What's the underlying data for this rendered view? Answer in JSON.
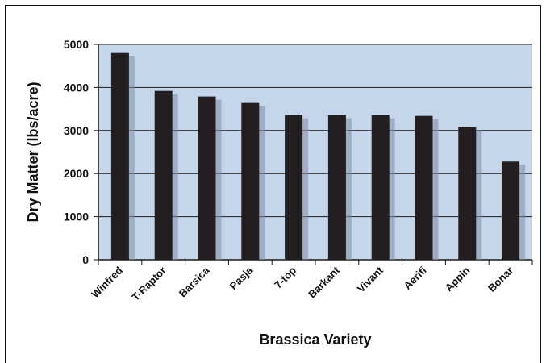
{
  "chart_data": {
    "type": "bar",
    "title": "",
    "xlabel": "Brassica Variety",
    "ylabel": "Dry Matter (lbs/acre)",
    "categories": [
      "Winfred",
      "T-Raptor",
      "Barsica",
      "Pasja",
      "7-top",
      "Barkant",
      "Vivant",
      "Aerifi",
      "Appin",
      "Bonar"
    ],
    "values": [
      4800,
      3920,
      3790,
      3640,
      3360,
      3360,
      3360,
      3340,
      3080,
      2280
    ],
    "ylim": [
      0,
      5000
    ],
    "yticks": [
      0,
      1000,
      2000,
      3000,
      4000,
      5000
    ],
    "grid": true,
    "legend": "none"
  },
  "colors": {
    "plot_background": "#c5d5ea",
    "bar": "#231f20",
    "bar_shadow": "#7f8ea6",
    "gridline": "#1a1a1a",
    "frame_border": "#111111"
  }
}
